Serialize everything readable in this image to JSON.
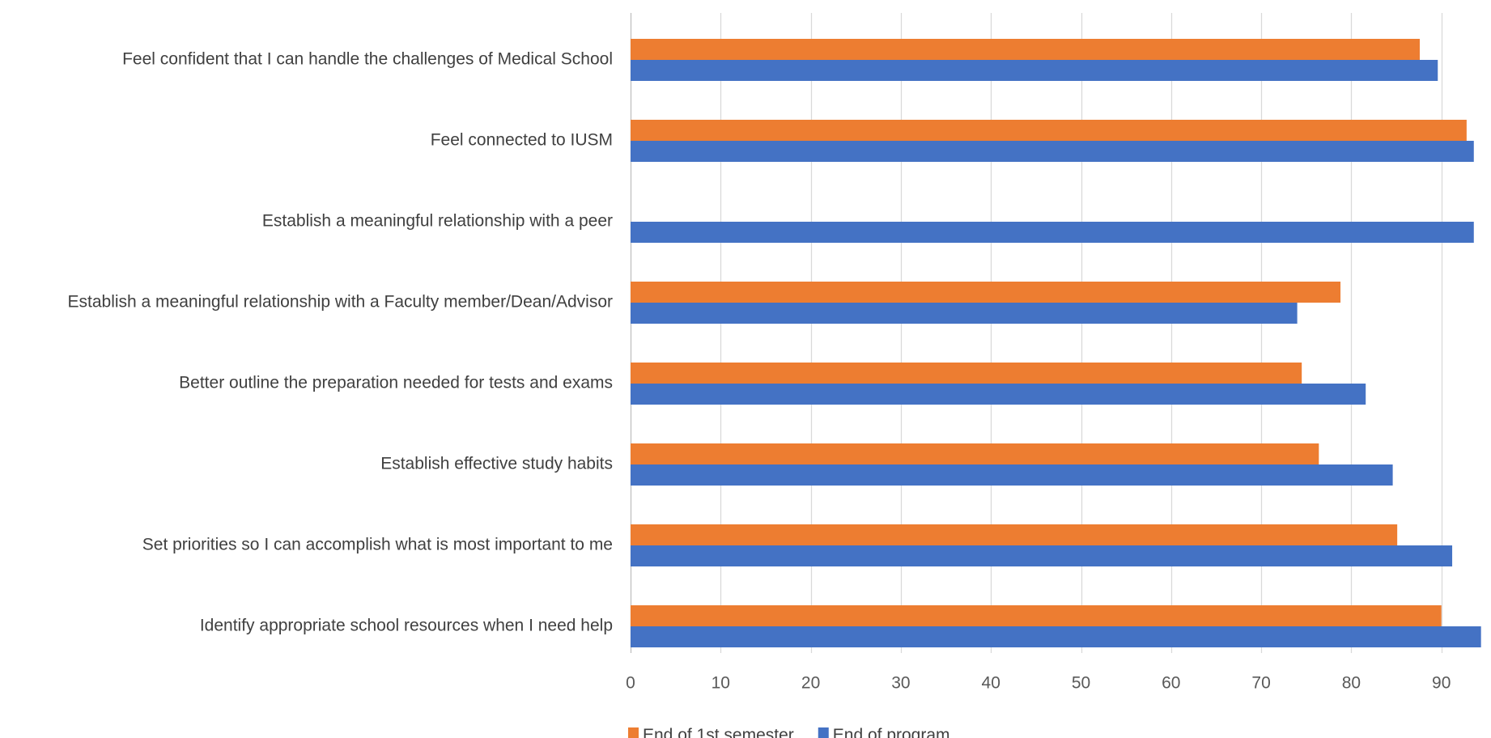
{
  "chart_data": {
    "type": "bar",
    "orientation": "horizontal",
    "categories": [
      "Feel confident that I can handle the challenges of Medical School",
      "Feel connected to IUSM",
      "Establish a meaningful relationship with a peer",
      "Establish a meaningful relationship with a Faculty member/Dean/Advisor",
      "Better outline the preparation needed for tests and exams",
      "Establish effective study habits",
      "Set priorities so I can accomplish what is most important to me",
      "Identify appropriate school resources when I need help"
    ],
    "series": [
      {
        "name": "End of 1st semester",
        "color": "#ED7D31",
        "values": [
          87.6,
          92.8,
          null,
          78.8,
          74.5,
          76.4,
          85.1,
          90.0
        ]
      },
      {
        "name": "End of program",
        "color": "#4472C4",
        "values": [
          89.6,
          93.6,
          93.6,
          74.0,
          81.6,
          84.6,
          91.2,
          94.4
        ]
      }
    ],
    "xlabel": "",
    "ylabel": "",
    "xlim": [
      0,
      94.4
    ],
    "xticks": [
      0,
      10,
      20,
      30,
      40,
      50,
      60,
      70,
      80,
      90
    ],
    "grid": true,
    "legend": "bottom"
  }
}
